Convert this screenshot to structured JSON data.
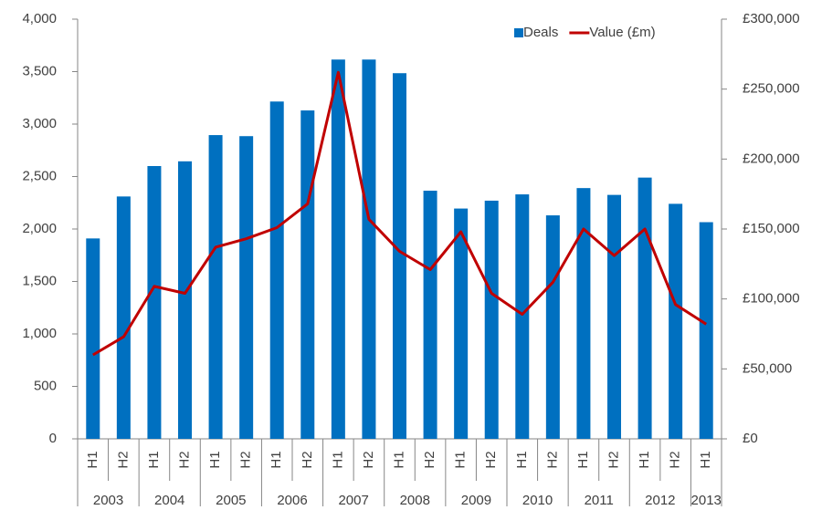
{
  "chart_data": {
    "type": "bar-line",
    "categories": [
      "H1",
      "H2",
      "H1",
      "H2",
      "H1",
      "H2",
      "H1",
      "H2",
      "H1",
      "H2",
      "H1",
      "H2",
      "H1",
      "H2",
      "H1",
      "H2",
      "H1",
      "H2",
      "H1",
      "H2",
      "H1"
    ],
    "years": [
      "2003",
      "2004",
      "2005",
      "2006",
      "2007",
      "2008",
      "2009",
      "2010",
      "2011",
      "2012",
      "2013"
    ],
    "series": [
      {
        "name": "Deals",
        "type": "bar",
        "color": "#0070c0",
        "values": [
          1910,
          2310,
          2600,
          2645,
          2895,
          2885,
          3215,
          3130,
          3615,
          3615,
          3485,
          2365,
          2195,
          2270,
          2330,
          2130,
          2390,
          2325,
          2490,
          2240,
          2065
        ]
      },
      {
        "name": "Value (£m)",
        "type": "line",
        "axis": "y2",
        "color": "#c00000",
        "values": [
          60000,
          73000,
          109000,
          104000,
          137000,
          143000,
          151000,
          168000,
          262000,
          157000,
          134000,
          121000,
          148000,
          104000,
          89000,
          112000,
          150000,
          131000,
          150000,
          96000,
          82000
        ]
      }
    ],
    "ylim": [
      0,
      4000
    ],
    "yticks": [
      0,
      {
        "value": 500,
        "label": "500"
      },
      {
        "value": 1000,
        "label": "1,000"
      },
      {
        "value": 1500,
        "label": "1,500"
      },
      {
        "value": 2000,
        "label": "2,000"
      },
      {
        "value": 2500,
        "label": "2,500"
      },
      {
        "value": 3000,
        "label": "3,000"
      },
      {
        "value": 3500,
        "label": "3,500"
      },
      {
        "value": 4000,
        "label": "4,000"
      }
    ],
    "y2lim": [
      0,
      300000
    ],
    "y2ticks": [
      {
        "value": 0,
        "label": "£0"
      },
      {
        "value": 50000,
        "label": "£50,000"
      },
      {
        "value": 100000,
        "label": "£100,000"
      },
      {
        "value": 150000,
        "label": "£150,000"
      },
      {
        "value": 200000,
        "label": "£200,000"
      },
      {
        "value": 250000,
        "label": "£250,000"
      },
      {
        "value": 300000,
        "label": "£300,000"
      }
    ],
    "legend": "top-right",
    "grid": false
  }
}
